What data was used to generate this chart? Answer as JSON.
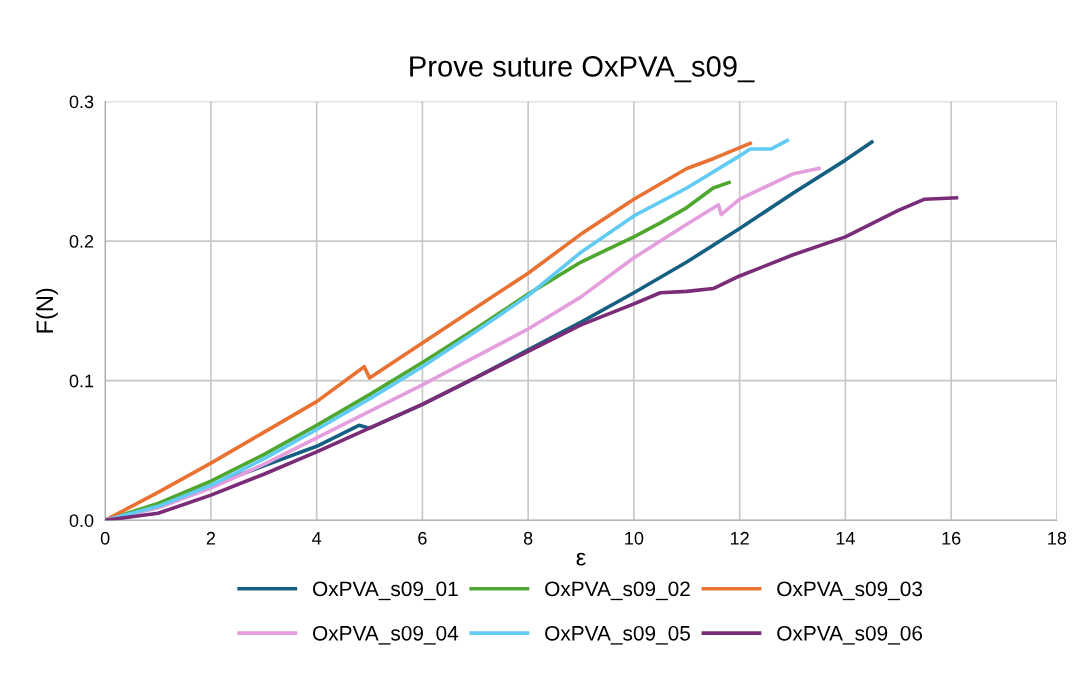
{
  "chart_data": {
    "type": "line",
    "title": "Prove suture OxPVA_s09_",
    "xlabel": "ε",
    "ylabel": "F(N)",
    "xlim": [
      0,
      18
    ],
    "xticks": [
      0,
      2,
      4,
      6,
      8,
      10,
      12,
      14,
      16,
      18
    ],
    "ylim": [
      0,
      0.3
    ],
    "yticks": [
      {
        "value": 0,
        "label": "0.0"
      },
      {
        "value": 0.1,
        "label": "0.1"
      },
      {
        "value": 0.2,
        "label": "0.2"
      },
      {
        "value": 0.3,
        "label": "0.3"
      }
    ],
    "grid": true,
    "legend": "bottom",
    "marker": "none",
    "line_style": "solid",
    "series": [
      {
        "name": "OxPVA_s09_01",
        "color": "#156082",
        "x": [
          0,
          1,
          2,
          3,
          4,
          4.8,
          5.0,
          6,
          7,
          8,
          9,
          10,
          11,
          12,
          13,
          14,
          14.5
        ],
        "values": [
          0,
          0.01,
          0.025,
          0.039,
          0.053,
          0.068,
          0.066,
          0.083,
          0.102,
          0.122,
          0.142,
          0.163,
          0.185,
          0.209,
          0.234,
          0.258,
          0.271
        ]
      },
      {
        "name": "OxPVA_s09_02",
        "color": "#4ea72e",
        "x": [
          0,
          1,
          2,
          3,
          4,
          5,
          6,
          7,
          8,
          9,
          10,
          10.5,
          11,
          11.5,
          11.8
        ],
        "values": [
          0,
          0.012,
          0.028,
          0.047,
          0.068,
          0.09,
          0.113,
          0.137,
          0.162,
          0.185,
          0.203,
          0.213,
          0.224,
          0.238,
          0.242
        ]
      },
      {
        "name": "OxPVA_s09_03",
        "color": "#e97132",
        "x": [
          0,
          1,
          2,
          3,
          4,
          4.9,
          5.0,
          6,
          7,
          8,
          9,
          10,
          11,
          11.5,
          12.2
        ],
        "values": [
          0,
          0.02,
          0.041,
          0.063,
          0.085,
          0.11,
          0.102,
          0.127,
          0.152,
          0.177,
          0.205,
          0.23,
          0.252,
          0.259,
          0.27
        ]
      },
      {
        "name": "OxPVA_s09_04",
        "color": "#e59edd",
        "x": [
          0,
          1,
          2,
          3,
          4,
          5,
          6,
          7,
          8,
          9,
          10,
          11,
          11.6,
          11.65,
          12,
          13,
          13.5
        ],
        "values": [
          0,
          0.009,
          0.023,
          0.04,
          0.059,
          0.078,
          0.097,
          0.117,
          0.137,
          0.16,
          0.188,
          0.212,
          0.226,
          0.219,
          0.23,
          0.248,
          0.252
        ]
      },
      {
        "name": "OxPVA_s09_05",
        "color": "#61cbf3",
        "x": [
          0,
          1,
          2,
          3,
          4,
          5,
          6,
          7,
          8,
          9,
          10,
          11,
          12,
          12.2,
          12.6,
          12.9
        ],
        "values": [
          0,
          0.01,
          0.025,
          0.044,
          0.065,
          0.087,
          0.11,
          0.135,
          0.161,
          0.192,
          0.218,
          0.238,
          0.261,
          0.266,
          0.266,
          0.272
        ]
      },
      {
        "name": "OxPVA_s09_06",
        "color": "#7b2c78",
        "x": [
          0,
          1,
          2,
          3,
          4,
          5,
          6,
          7,
          8,
          9,
          10,
          10.5,
          11,
          11.5,
          12,
          13,
          14,
          15,
          15.5,
          16.1
        ],
        "values": [
          0,
          0.005,
          0.018,
          0.033,
          0.049,
          0.066,
          0.083,
          0.102,
          0.121,
          0.14,
          0.155,
          0.163,
          0.164,
          0.166,
          0.175,
          0.19,
          0.203,
          0.222,
          0.23,
          0.231
        ]
      }
    ]
  }
}
